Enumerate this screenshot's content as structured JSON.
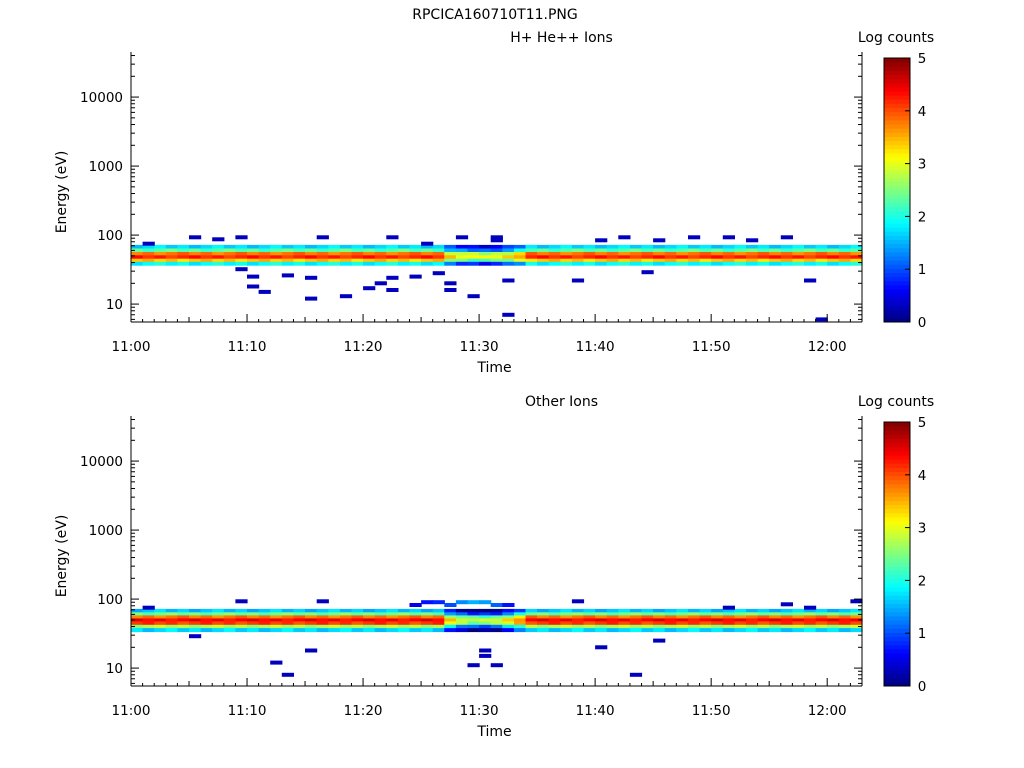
{
  "page_title": "RPCICA160710T11.PNG",
  "chart_data": [
    {
      "type": "heatmap",
      "title": "H+ He++ Ions",
      "xlabel": "Time",
      "ylabel": "Energy (eV)",
      "x_ticks": [
        "11:00",
        "11:10",
        "11:20",
        "11:30",
        "11:40",
        "11:50",
        "12:00"
      ],
      "x_range": [
        "11:00",
        "12:03"
      ],
      "y_scale": "log",
      "y_ticks": [
        10,
        100,
        1000,
        10000
      ],
      "y_range": [
        5.5,
        45000
      ],
      "colorbar": {
        "label": "Log counts",
        "range": [
          0,
          5
        ],
        "ticks": [
          0,
          1,
          2,
          3,
          4,
          5
        ]
      },
      "band_profile": [
        {
          "energy": 68,
          "value": 1.7
        },
        {
          "energy": 60,
          "value": 2.3
        },
        {
          "energy": 54,
          "value": 3.8
        },
        {
          "energy": 48,
          "value": 4.2
        },
        {
          "energy": 43,
          "value": 3.4
        },
        {
          "energy": 39,
          "value": 1.9
        }
      ],
      "band_minute_offsets": {
        "27": -0.8,
        "28": -1.0,
        "29": -1.1,
        "30": -1.2,
        "31": -1.1,
        "32": -0.9,
        "33": -0.5
      },
      "sparse_counts": [
        {
          "time": "11:01",
          "energy": 75,
          "value": 0.3
        },
        {
          "time": "11:05",
          "energy": 93,
          "value": 0.3
        },
        {
          "time": "11:07",
          "energy": 87,
          "value": 0.3
        },
        {
          "time": "11:09",
          "energy": 93,
          "value": 0.3
        },
        {
          "time": "11:09",
          "energy": 32,
          "value": 0.3
        },
        {
          "time": "11:10",
          "energy": 25,
          "value": 0.3
        },
        {
          "time": "11:10",
          "energy": 18,
          "value": 0.3
        },
        {
          "time": "11:11",
          "energy": 15,
          "value": 0.3
        },
        {
          "time": "11:13",
          "energy": 26,
          "value": 0.3
        },
        {
          "time": "11:15",
          "energy": 24,
          "value": 0.3
        },
        {
          "time": "11:15",
          "energy": 12,
          "value": 0.3
        },
        {
          "time": "11:16",
          "energy": 93,
          "value": 0.3
        },
        {
          "time": "11:18",
          "energy": 13,
          "value": 0.3
        },
        {
          "time": "11:20",
          "energy": 17,
          "value": 0.3
        },
        {
          "time": "11:21",
          "energy": 20,
          "value": 0.3
        },
        {
          "time": "11:22",
          "energy": 24,
          "value": 0.3
        },
        {
          "time": "11:22",
          "energy": 16,
          "value": 0.3
        },
        {
          "time": "11:22",
          "energy": 93,
          "value": 0.3
        },
        {
          "time": "11:24",
          "energy": 25,
          "value": 0.3
        },
        {
          "time": "11:25",
          "energy": 75,
          "value": 0.3
        },
        {
          "time": "11:26",
          "energy": 28,
          "value": 0.3
        },
        {
          "time": "11:27",
          "energy": 20,
          "value": 0.3
        },
        {
          "time": "11:27",
          "energy": 16,
          "value": 0.3
        },
        {
          "time": "11:28",
          "energy": 93,
          "value": 0.3
        },
        {
          "time": "11:29",
          "energy": 13,
          "value": 0.3
        },
        {
          "time": "11:31",
          "energy": 93,
          "value": 0.3
        },
        {
          "time": "11:31",
          "energy": 84,
          "value": 0.3
        },
        {
          "time": "11:32",
          "energy": 22,
          "value": 0.3
        },
        {
          "time": "11:32",
          "energy": 7,
          "value": 0.3
        },
        {
          "time": "11:38",
          "energy": 22,
          "value": 0.3
        },
        {
          "time": "11:40",
          "energy": 84,
          "value": 0.3
        },
        {
          "time": "11:42",
          "energy": 93,
          "value": 0.3
        },
        {
          "time": "11:44",
          "energy": 29,
          "value": 0.3
        },
        {
          "time": "11:45",
          "energy": 84,
          "value": 0.3
        },
        {
          "time": "11:48",
          "energy": 93,
          "value": 0.3
        },
        {
          "time": "11:51",
          "energy": 93,
          "value": 0.3
        },
        {
          "time": "11:53",
          "energy": 84,
          "value": 0.3
        },
        {
          "time": "11:56",
          "energy": 93,
          "value": 0.3
        },
        {
          "time": "11:58",
          "energy": 22,
          "value": 0.3
        },
        {
          "time": "11:59",
          "energy": 6,
          "value": 0.3
        }
      ]
    },
    {
      "type": "heatmap",
      "title": "Other Ions",
      "xlabel": "Time",
      "ylabel": "Energy (eV)",
      "x_ticks": [
        "11:00",
        "11:10",
        "11:20",
        "11:30",
        "11:40",
        "11:50",
        "12:00"
      ],
      "x_range": [
        "11:00",
        "12:03"
      ],
      "y_scale": "log",
      "y_ticks": [
        10,
        100,
        1000,
        10000
      ],
      "y_range": [
        5.5,
        45000
      ],
      "colorbar": {
        "label": "Log counts",
        "range": [
          0,
          5
        ],
        "ticks": [
          0,
          1,
          2,
          3,
          4,
          5
        ]
      },
      "band_profile": [
        {
          "energy": 68,
          "value": 1.6
        },
        {
          "energy": 61,
          "value": 2.4
        },
        {
          "energy": 55,
          "value": 3.8
        },
        {
          "energy": 50,
          "value": 4.4
        },
        {
          "energy": 45,
          "value": 4.1
        },
        {
          "energy": 40,
          "value": 2.7
        },
        {
          "energy": 36,
          "value": 1.7
        }
      ],
      "band_minute_offsets": {
        "27": -1.0,
        "28": -1.4,
        "29": -1.6,
        "30": -1.6,
        "31": -1.5,
        "32": -1.1,
        "33": -0.6
      },
      "sparse_counts": [
        {
          "time": "11:01",
          "energy": 75,
          "value": 0.3
        },
        {
          "time": "11:05",
          "energy": 29,
          "value": 0.3
        },
        {
          "time": "11:09",
          "energy": 93,
          "value": 0.3
        },
        {
          "time": "11:12",
          "energy": 12,
          "value": 0.3
        },
        {
          "time": "11:13",
          "energy": 8,
          "value": 0.3
        },
        {
          "time": "11:15",
          "energy": 18,
          "value": 0.3
        },
        {
          "time": "11:16",
          "energy": 93,
          "value": 0.3
        },
        {
          "time": "11:24",
          "energy": 82,
          "value": 0.5
        },
        {
          "time": "11:25",
          "energy": 90,
          "value": 0.7
        },
        {
          "time": "11:26",
          "energy": 90,
          "value": 0.8
        },
        {
          "time": "11:27",
          "energy": 82,
          "value": 1.0
        },
        {
          "time": "11:28",
          "energy": 90,
          "value": 1.3
        },
        {
          "time": "11:29",
          "energy": 90,
          "value": 1.5
        },
        {
          "time": "11:30",
          "energy": 90,
          "value": 1.4
        },
        {
          "time": "11:31",
          "energy": 82,
          "value": 1.1
        },
        {
          "time": "11:32",
          "energy": 82,
          "value": 0.7
        },
        {
          "time": "11:29",
          "energy": 11,
          "value": 0.3
        },
        {
          "time": "11:30",
          "energy": 18,
          "value": 0.3
        },
        {
          "time": "11:30",
          "energy": 15,
          "value": 0.3
        },
        {
          "time": "11:31",
          "energy": 11,
          "value": 0.3
        },
        {
          "time": "11:38",
          "energy": 93,
          "value": 0.3
        },
        {
          "time": "11:40",
          "energy": 20,
          "value": 0.3
        },
        {
          "time": "11:43",
          "energy": 8,
          "value": 0.3
        },
        {
          "time": "11:45",
          "energy": 25,
          "value": 0.3
        },
        {
          "time": "11:51",
          "energy": 75,
          "value": 0.3
        },
        {
          "time": "11:56",
          "energy": 84,
          "value": 0.3
        },
        {
          "time": "11:58",
          "energy": 75,
          "value": 0.3
        },
        {
          "time": "12:02",
          "energy": 93,
          "value": 0.3
        }
      ]
    }
  ]
}
